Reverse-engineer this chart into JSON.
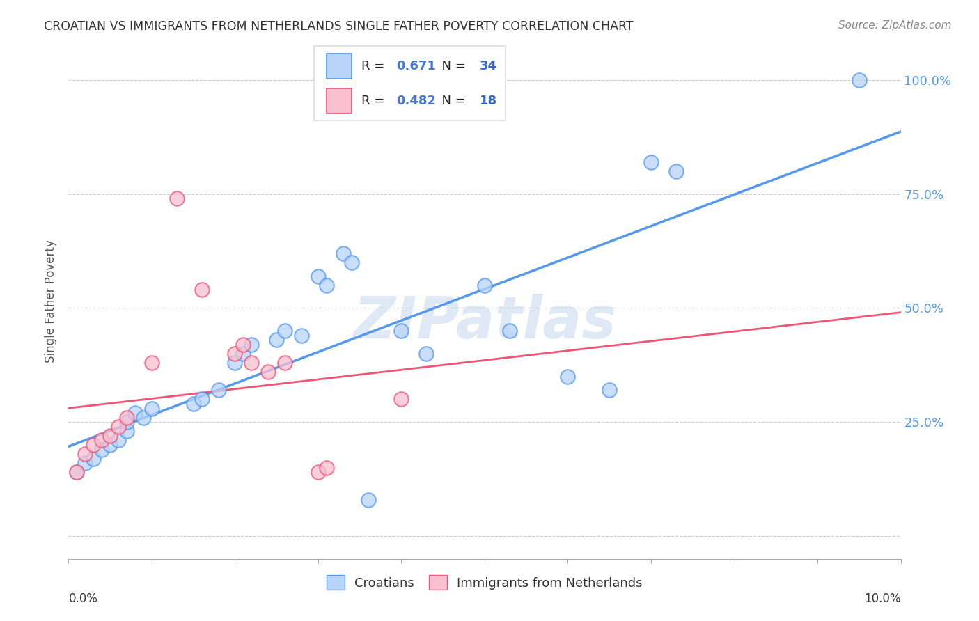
{
  "title": "CROATIAN VS IMMIGRANTS FROM NETHERLANDS SINGLE FATHER POVERTY CORRELATION CHART",
  "source": "Source: ZipAtlas.com",
  "ylabel": "Single Father Poverty",
  "watermark": "ZIPatlas",
  "blue_R": "0.671",
  "blue_N": "34",
  "pink_R": "0.482",
  "pink_N": "18",
  "blue_color": "#b8d4f8",
  "pink_color": "#f8c0d0",
  "blue_line_color": "#5599ee",
  "pink_line_color": "#ee5577",
  "legend_R_color": "#4477dd",
  "legend_N_color": "#3366cc",
  "blue_points": [
    [
      0.001,
      0.14
    ],
    [
      0.002,
      0.16
    ],
    [
      0.003,
      0.17
    ],
    [
      0.004,
      0.19
    ],
    [
      0.005,
      0.2
    ],
    [
      0.006,
      0.21
    ],
    [
      0.007,
      0.23
    ],
    [
      0.007,
      0.25
    ],
    [
      0.008,
      0.27
    ],
    [
      0.009,
      0.26
    ],
    [
      0.01,
      0.28
    ],
    [
      0.015,
      0.29
    ],
    [
      0.016,
      0.3
    ],
    [
      0.018,
      0.32
    ],
    [
      0.02,
      0.38
    ],
    [
      0.021,
      0.4
    ],
    [
      0.022,
      0.42
    ],
    [
      0.025,
      0.43
    ],
    [
      0.026,
      0.45
    ],
    [
      0.028,
      0.44
    ],
    [
      0.03,
      0.57
    ],
    [
      0.031,
      0.55
    ],
    [
      0.033,
      0.62
    ],
    [
      0.034,
      0.6
    ],
    [
      0.04,
      0.45
    ],
    [
      0.043,
      0.4
    ],
    [
      0.05,
      0.55
    ],
    [
      0.053,
      0.45
    ],
    [
      0.06,
      0.35
    ],
    [
      0.065,
      0.32
    ],
    [
      0.07,
      0.82
    ],
    [
      0.073,
      0.8
    ],
    [
      0.036,
      0.08
    ],
    [
      0.095,
      1.0
    ]
  ],
  "pink_points": [
    [
      0.001,
      0.14
    ],
    [
      0.002,
      0.18
    ],
    [
      0.003,
      0.2
    ],
    [
      0.004,
      0.21
    ],
    [
      0.005,
      0.22
    ],
    [
      0.006,
      0.24
    ],
    [
      0.007,
      0.26
    ],
    [
      0.01,
      0.38
    ],
    [
      0.013,
      0.74
    ],
    [
      0.016,
      0.54
    ],
    [
      0.02,
      0.4
    ],
    [
      0.021,
      0.42
    ],
    [
      0.022,
      0.38
    ],
    [
      0.024,
      0.36
    ],
    [
      0.026,
      0.38
    ],
    [
      0.03,
      0.14
    ],
    [
      0.031,
      0.15
    ],
    [
      0.04,
      0.3
    ]
  ],
  "xlim": [
    0,
    0.1
  ],
  "ylim": [
    -0.05,
    1.08
  ],
  "yticks": [
    0.0,
    0.25,
    0.5,
    0.75,
    1.0
  ],
  "ytick_labels": [
    "",
    "25.0%",
    "50.0%",
    "75.0%",
    "100.0%"
  ],
  "xticks": [
    0.0,
    0.01,
    0.02,
    0.03,
    0.04,
    0.05,
    0.06,
    0.07,
    0.08,
    0.09,
    0.1
  ],
  "background_color": "#ffffff",
  "grid_color": "#cccccc",
  "legend_box_color": "#dddddd"
}
